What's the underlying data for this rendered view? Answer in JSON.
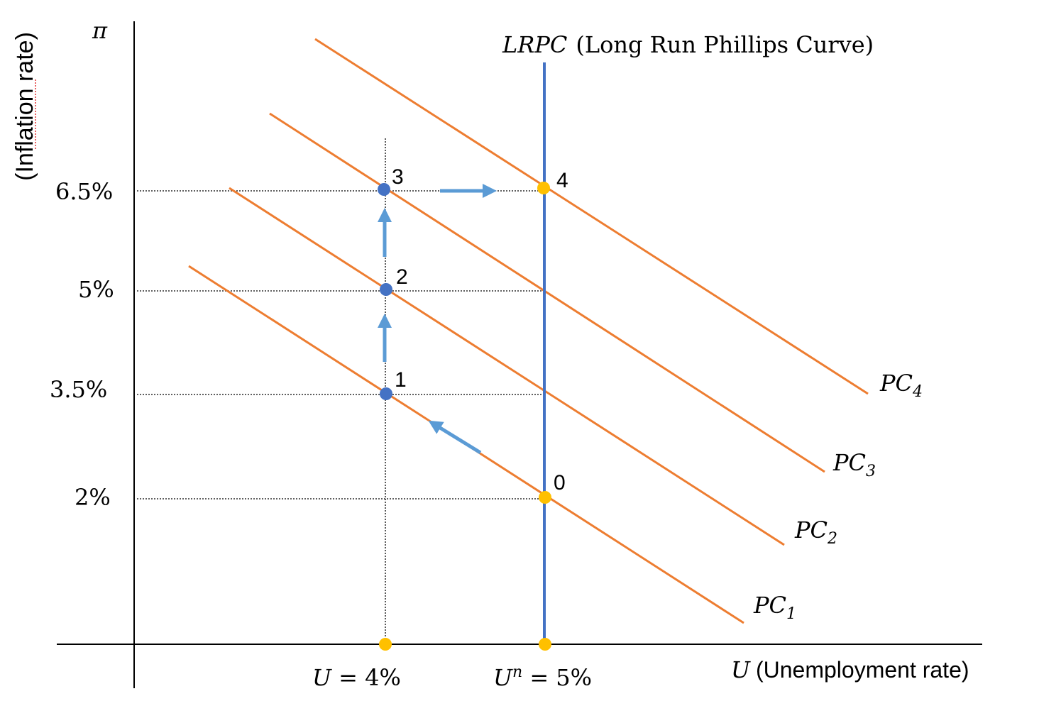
{
  "colors": {
    "pc_curve": "#ED7D31",
    "lrpc": "#4472C4",
    "arrow": "#5B9BD5",
    "blue_point": "#4472C4",
    "yellow_point": "#FFC000"
  },
  "axes": {
    "y_symbol": "π",
    "y_label": "(Inflation rate)",
    "x_symbol": "U",
    "x_label": "(Unemployment rate)"
  },
  "y_ticks": [
    "6.5%",
    "5%",
    "3.5%",
    "2%"
  ],
  "x_ticks": {
    "u4_var": "U",
    "u4_rest": " = 4%",
    "un_var": "U",
    "un_sup": "n",
    "un_rest": " = 5%"
  },
  "lrpc": {
    "abbr": "LRPC",
    "full": "(Long Run Phillips Curve)"
  },
  "curves": [
    {
      "base": "PC",
      "sub": "1"
    },
    {
      "base": "PC",
      "sub": "2"
    },
    {
      "base": "PC",
      "sub": "3"
    },
    {
      "base": "PC",
      "sub": "4"
    }
  ],
  "points": [
    "0",
    "1",
    "2",
    "3",
    "4"
  ]
}
